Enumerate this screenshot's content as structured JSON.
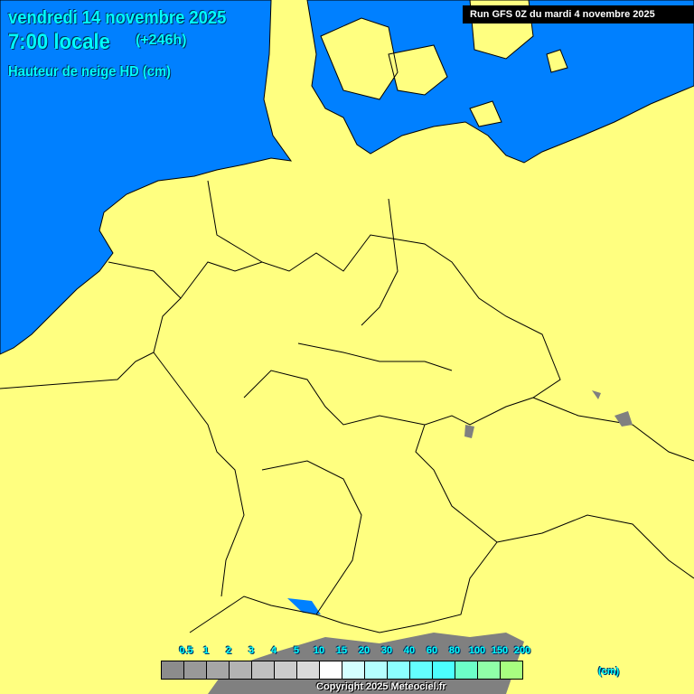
{
  "header": {
    "date": "vendredi 14 novembre 2025",
    "hour": "7:00 locale",
    "lead": "(+246h)",
    "parameter": "Hauteur de neige HD (cm)",
    "run": "Run GFS 0Z du mardi 4 novembre 2025"
  },
  "colors": {
    "land": "#ffff80",
    "sea": "#0080ff",
    "border": "#000000",
    "snow": "#808080"
  },
  "legend": {
    "unit": "(cm)",
    "labels": [
      "0.5",
      "1",
      "2",
      "3",
      "4",
      "5",
      "10",
      "15",
      "20",
      "30",
      "40",
      "60",
      "80",
      "100",
      "150",
      "200"
    ],
    "colors": [
      "#8c8c8c",
      "#999999",
      "#a6a6a6",
      "#b3b3b3",
      "#c0c0c0",
      "#cccccc",
      "#dadada",
      "#ffffff",
      "#d4ffff",
      "#b4ffff",
      "#8cffff",
      "#64ffff",
      "#4cffff",
      "#6cffc8",
      "#90ffa8",
      "#a8ff80"
    ]
  },
  "copyright": "Copyright 2025 Meteociel.fr"
}
